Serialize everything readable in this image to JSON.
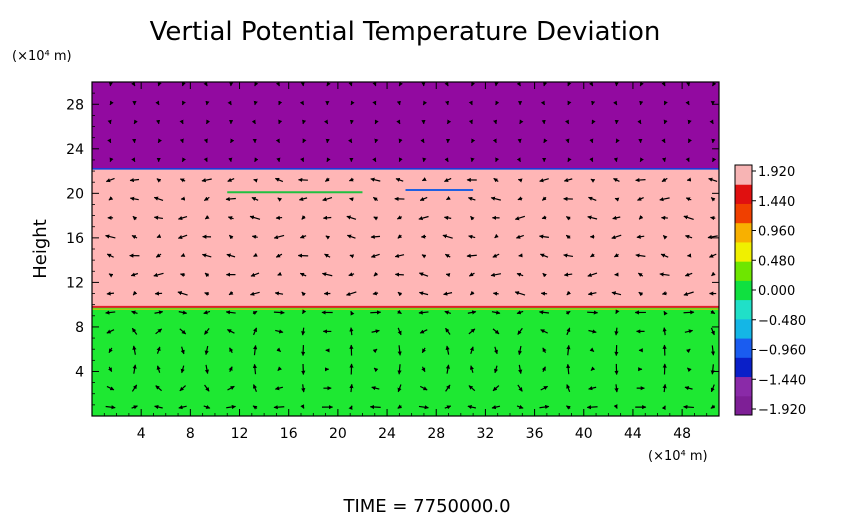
{
  "chart_data": {
    "type": "heatmap",
    "title": "Vertial Potential Temperature Deviation",
    "ylabel": "Height",
    "y_unit": "(×10⁴ m)",
    "x_unit": "(×10⁴ m)",
    "xlim": [
      0,
      51
    ],
    "ylim": [
      0,
      30
    ],
    "x_ticks": [
      "4",
      "8",
      "12",
      "16",
      "20",
      "24",
      "28",
      "32",
      "36",
      "40",
      "44",
      "48"
    ],
    "y_ticks": [
      "4",
      "8",
      "12",
      "16",
      "20",
      "24",
      "28"
    ],
    "x_tick_values": [
      4,
      8,
      12,
      16,
      20,
      24,
      28,
      32,
      36,
      40,
      44,
      48
    ],
    "y_tick_values": [
      4,
      8,
      12,
      16,
      20,
      24,
      28
    ],
    "colorbar": {
      "labels": [
        "1.920",
        "1.440",
        "0.960",
        "0.480",
        "0.000",
        "−0.480",
        "−0.960",
        "−1.440",
        "−1.920"
      ],
      "min": -1.92,
      "max": 1.92,
      "colors": [
        "#7e1f96",
        "#8a2aa8",
        "#0a1fc8",
        "#1a5cf0",
        "#14b6e6",
        "#20e0c8",
        "#10e040",
        "#6ee600",
        "#f0f000",
        "#f8b000",
        "#f04000",
        "#e01010",
        "#f7b4b4"
      ]
    },
    "bands": [
      {
        "y_from": 0,
        "y_to": 9.8,
        "value": 0.0,
        "color": "#1ee832"
      },
      {
        "y_from": 9.8,
        "y_to": 22.2,
        "value": 1.92,
        "color": "#ffb6b6"
      },
      {
        "y_from": 22.2,
        "y_to": 30,
        "value": -1.92,
        "color": "#920aa0"
      }
    ],
    "vector_field": "wind vectors"
  },
  "footer": {
    "time_label": "TIME  =  7750000.0"
  }
}
